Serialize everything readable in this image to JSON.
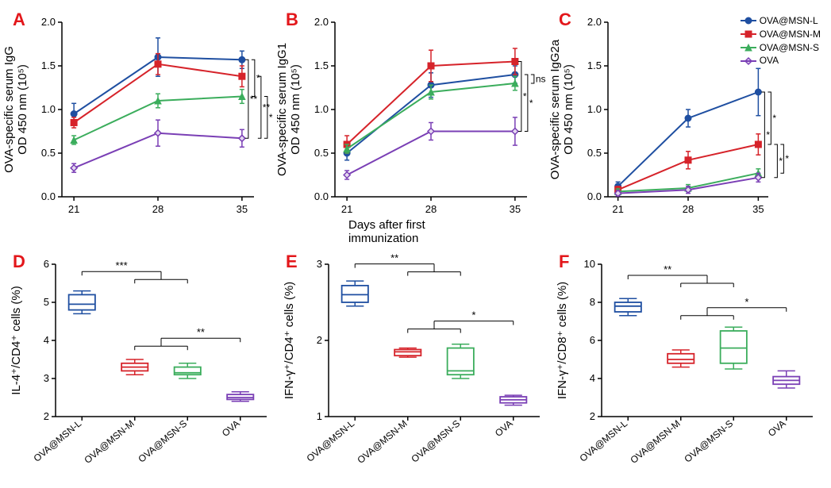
{
  "colors": {
    "L": "#1f4fa1",
    "M": "#d6232a",
    "S": "#3bad5c",
    "O": "#7a3fb5",
    "axis": "#000000",
    "bg": "#ffffff"
  },
  "legend": {
    "items": [
      {
        "label": "OVA@MSN-L",
        "color": "#1f4fa1",
        "marker": "circle"
      },
      {
        "label": "OVA@MSN-M",
        "color": "#d6232a",
        "marker": "square"
      },
      {
        "label": "OVA@MSN-S",
        "color": "#3bad5c",
        "marker": "triangle"
      },
      {
        "label": "OVA",
        "color": "#7a3fb5",
        "marker": "diamond"
      }
    ]
  },
  "row1_x": {
    "ticks": [
      21,
      28,
      35
    ],
    "xmin": 20,
    "xmax": 36,
    "label": "Days after first immunization"
  },
  "row1_y": {
    "ticks": [
      0,
      0.5,
      1.0,
      1.5,
      2.0
    ],
    "ymin": 0,
    "ymax": 2.0
  },
  "A": {
    "ylabel": "OVA-specific serum IgG\nOD 450 nm (10⁵)",
    "series": {
      "L": {
        "y": [
          0.95,
          1.6,
          1.57
        ],
        "err": [
          0.12,
          0.22,
          0.1
        ],
        "color": "#1f4fa1",
        "marker": "circle"
      },
      "M": {
        "y": [
          0.85,
          1.52,
          1.38
        ],
        "err": [
          0.06,
          0.12,
          0.12
        ],
        "color": "#d6232a",
        "marker": "square"
      },
      "S": {
        "y": [
          0.65,
          1.1,
          1.15
        ],
        "err": [
          0.05,
          0.08,
          0.08
        ],
        "color": "#3bad5c",
        "marker": "triangle"
      },
      "O": {
        "y": [
          0.33,
          0.73,
          0.67
        ],
        "err": [
          0.05,
          0.15,
          0.1
        ],
        "color": "#7a3fb5",
        "marker": "diamond"
      }
    },
    "sig": [
      {
        "from": "L",
        "to": "O",
        "x": 35,
        "text": "**",
        "off": 0.3
      },
      {
        "from": "L",
        "to": "S",
        "x": 35,
        "text": "*",
        "off": 0.2
      },
      {
        "from": "M",
        "to": "O",
        "x": 35,
        "text": "**",
        "off": 0.1
      },
      {
        "from": "S",
        "to": "O",
        "x": 35,
        "text": "*",
        "off": 0.0
      }
    ]
  },
  "B": {
    "ylabel": "OVA-specific serum IgG1\nOD 450 nm (10⁵)",
    "series": {
      "L": {
        "y": [
          0.5,
          1.28,
          1.4
        ],
        "err": [
          0.08,
          0.14,
          0.1
        ],
        "color": "#1f4fa1",
        "marker": "circle"
      },
      "M": {
        "y": [
          0.6,
          1.5,
          1.55
        ],
        "err": [
          0.1,
          0.18,
          0.15
        ],
        "color": "#d6232a",
        "marker": "square"
      },
      "S": {
        "y": [
          0.55,
          1.2,
          1.3
        ],
        "err": [
          0.05,
          0.08,
          0.08
        ],
        "color": "#3bad5c",
        "marker": "triangle"
      },
      "O": {
        "y": [
          0.25,
          0.75,
          0.75
        ],
        "err": [
          0.05,
          0.1,
          0.16
        ],
        "color": "#7a3fb5",
        "marker": "diamond"
      }
    },
    "sig": [
      {
        "from": "M",
        "to": "O",
        "x": 35,
        "text": "*",
        "off": 0.25
      },
      {
        "from": "L",
        "to": "O",
        "x": 35,
        "text": "*",
        "off": 0.15
      },
      {
        "from": "L",
        "to": "S",
        "x": 35,
        "text": "ns",
        "off": 0.05
      }
    ]
  },
  "C": {
    "ylabel": "OVA-specific serum IgG2a\nOD 450 nm (10⁵)",
    "series": {
      "L": {
        "y": [
          0.12,
          0.9,
          1.2
        ],
        "err": [
          0.05,
          0.1,
          0.27
        ],
        "color": "#1f4fa1",
        "marker": "circle"
      },
      "M": {
        "y": [
          0.08,
          0.42,
          0.6
        ],
        "err": [
          0.04,
          0.1,
          0.12
        ],
        "color": "#d6232a",
        "marker": "square"
      },
      "S": {
        "y": [
          0.06,
          0.1,
          0.27
        ],
        "err": [
          0.03,
          0.04,
          0.05
        ],
        "color": "#3bad5c",
        "marker": "triangle"
      },
      "O": {
        "y": [
          0.04,
          0.08,
          0.22
        ],
        "err": [
          0.03,
          0.04,
          0.05
        ],
        "color": "#7a3fb5",
        "marker": "diamond"
      }
    },
    "sig": [
      {
        "from": "L",
        "to": "O",
        "x": 35,
        "text": "*",
        "off": 0.35
      },
      {
        "from": "L",
        "to": "M",
        "x": 35,
        "text": "*",
        "off": 0.25
      },
      {
        "from": "M",
        "to": "O",
        "x": 35,
        "text": "*",
        "off": 0.1
      },
      {
        "from": "M",
        "to": "S",
        "x": 35,
        "text": "*",
        "off": 0.0
      }
    ]
  },
  "row2_cats": [
    "OVA@MSN-L",
    "OVA@MSN-M",
    "OVA@MSN-S",
    "OVA"
  ],
  "D": {
    "ylabel": "IL-4⁺/CD4⁺ cells (%)",
    "ymin": 2,
    "ymax": 6,
    "yticks": [
      2,
      3,
      4,
      5,
      6
    ],
    "box": [
      {
        "min": 4.7,
        "q1": 4.8,
        "med": 4.95,
        "q3": 5.2,
        "max": 5.3,
        "color": "#1f4fa1"
      },
      {
        "min": 3.1,
        "q1": 3.2,
        "med": 3.3,
        "q3": 3.4,
        "max": 3.5,
        "color": "#d6232a"
      },
      {
        "min": 3.0,
        "q1": 3.1,
        "med": 3.15,
        "q3": 3.3,
        "max": 3.4,
        "color": "#3bad5c"
      },
      {
        "min": 2.4,
        "q1": 2.45,
        "med": 2.5,
        "q3": 2.58,
        "max": 2.65,
        "color": "#7a3fb5"
      }
    ],
    "sig": [
      {
        "a": 0,
        "b": [
          1,
          2
        ],
        "text": "***",
        "y": 5.6
      },
      {
        "a": 3,
        "b": [
          1,
          2
        ],
        "text": "**",
        "y": 3.85
      }
    ]
  },
  "E": {
    "ylabel": "IFN-γ⁺/CD4⁺ cells (%)",
    "ymin": 1,
    "ymax": 3,
    "yticks": [
      1,
      2,
      3
    ],
    "box": [
      {
        "min": 2.45,
        "q1": 2.5,
        "med": 2.6,
        "q3": 2.72,
        "max": 2.78,
        "color": "#1f4fa1"
      },
      {
        "min": 1.78,
        "q1": 1.8,
        "med": 1.85,
        "q3": 1.88,
        "max": 1.9,
        "color": "#d6232a"
      },
      {
        "min": 1.5,
        "q1": 1.55,
        "med": 1.6,
        "q3": 1.9,
        "max": 1.95,
        "color": "#3bad5c"
      },
      {
        "min": 1.15,
        "q1": 1.18,
        "med": 1.22,
        "q3": 1.26,
        "max": 1.28,
        "color": "#7a3fb5"
      }
    ],
    "sig": [
      {
        "a": 0,
        "b": [
          1,
          2
        ],
        "text": "**",
        "y": 2.9
      },
      {
        "a": 3,
        "b": [
          1,
          2
        ],
        "text": "*",
        "y": 2.15
      }
    ]
  },
  "F": {
    "ylabel": "IFN-γ⁺/CD8⁺ cells (%)",
    "ymin": 2,
    "ymax": 10,
    "yticks": [
      2,
      4,
      6,
      8,
      10
    ],
    "box": [
      {
        "min": 7.3,
        "q1": 7.5,
        "med": 7.8,
        "q3": 8.0,
        "max": 8.2,
        "color": "#1f4fa1"
      },
      {
        "min": 4.6,
        "q1": 4.8,
        "med": 5.0,
        "q3": 5.3,
        "max": 5.5,
        "color": "#d6232a"
      },
      {
        "min": 4.5,
        "q1": 4.8,
        "med": 5.6,
        "q3": 6.5,
        "max": 6.7,
        "color": "#3bad5c"
      },
      {
        "min": 3.5,
        "q1": 3.7,
        "med": 3.9,
        "q3": 4.1,
        "max": 4.4,
        "color": "#7a3fb5"
      }
    ],
    "sig": [
      {
        "a": 0,
        "b": [
          1,
          2
        ],
        "text": "**",
        "y": 9.0
      },
      {
        "a": 3,
        "b": [
          1,
          2
        ],
        "text": "*",
        "y": 7.3
      }
    ]
  }
}
